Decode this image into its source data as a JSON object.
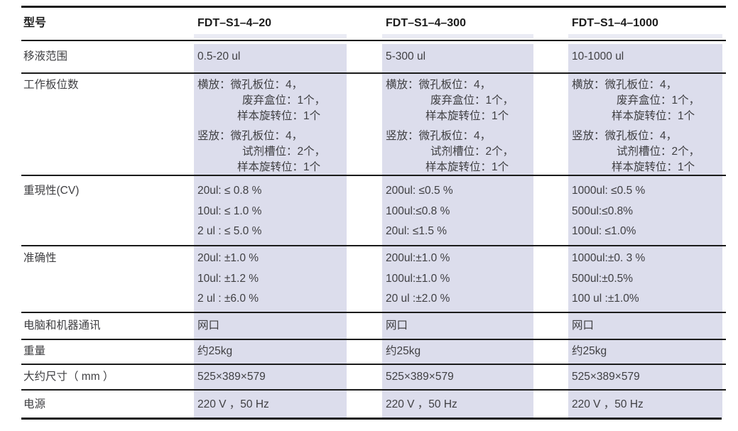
{
  "colors": {
    "band": "#dcddec",
    "text": "#3f3f42",
    "rule": "#1b1b1b"
  },
  "table": {
    "header": {
      "label": "型号",
      "models": [
        "FDT–S1–4–20",
        "FDT–S1–4–300",
        "FDT–S1–4–1000"
      ]
    },
    "rows": [
      {
        "label": "移液范围",
        "values": [
          "0.5-20 ul",
          "5-300 ul",
          "10-1000 ul"
        ]
      },
      {
        "label": "工作板位数",
        "values": [
          {
            "lines": [
              "横放：微孔板位：4，",
              "废弃盒位：1个，",
              "样本旋转位：1个",
              "竖放：微孔板位：4，",
              "试剂槽位：2个，",
              "样本旋转位：1个"
            ]
          },
          {
            "lines": [
              "横放：微孔板位：4，",
              "废弃盒位：1个，",
              "样本旋转位：1个",
              "竖放：微孔板位：4，",
              "试剂槽位：2个，",
              "样本旋转位：1个"
            ]
          },
          {
            "lines": [
              "横放：微孔板位：4，",
              "废弃盒位：1个，",
              "样本旋转位：1个",
              "竖放：微孔板位：4，",
              "试剂槽位：2个，",
              "样本旋转位：1个"
            ]
          }
        ]
      },
      {
        "label": "重現性(CV)",
        "values": [
          {
            "lines": [
              "20ul: ≤ 0.8 %",
              "10ul: ≤ 1.0 %",
              "2 ul : ≤ 5.0 %"
            ]
          },
          {
            "lines": [
              "200ul: ≤0.5 %",
              "100ul:≤0.8 %",
              "20ul: ≤1.5 %"
            ]
          },
          {
            "lines": [
              "1000ul: ≤0.5 %",
              "500ul:≤0.8%",
              "100ul: ≤1.0%"
            ]
          }
        ]
      },
      {
        "label": "准确性",
        "values": [
          {
            "lines": [
              "20ul: ±1.0 %",
              "10ul: ±1.2 %",
              "2 ul : ±6.0 %"
            ]
          },
          {
            "lines": [
              "200ul:±1.0 %",
              "100ul:±1.0 %",
              "20 ul :±2.0 %"
            ]
          },
          {
            "lines": [
              "1000ul:±0. 3 %",
              "500ul:±0.5%",
              "100 ul :±1.0%"
            ]
          }
        ]
      },
      {
        "label": "电脑和机器通讯",
        "values": [
          "网口",
          "网口",
          "网口"
        ]
      },
      {
        "label": "重量",
        "values": [
          "约25kg",
          "约25kg",
          "约25kg"
        ]
      },
      {
        "label": "大约尺寸（ mm ）",
        "values": [
          "525×389×579",
          "525×389×579",
          "525×389×579"
        ]
      },
      {
        "label": "电源",
        "values": [
          "220 V ，50 Hz",
          "220 V ，50 Hz",
          "220 V ，50 Hz"
        ]
      }
    ]
  }
}
